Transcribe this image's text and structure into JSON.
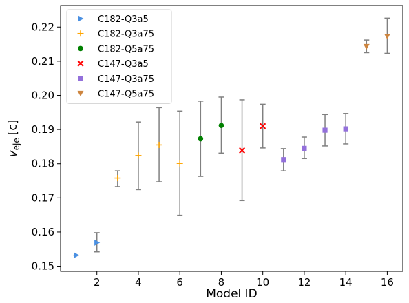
{
  "chart_data": {
    "type": "scatter",
    "xlabel": "Model ID",
    "ylabel_main": "v",
    "ylabel_sub": "eje",
    "ylabel_unit": "[c]",
    "xlim": [
      0.25,
      16.75
    ],
    "ylim": [
      0.1485,
      0.2263
    ],
    "xticks": [
      2,
      4,
      6,
      8,
      10,
      12,
      14,
      16
    ],
    "yticks": [
      0.15,
      0.16,
      0.17,
      0.18,
      0.19,
      0.2,
      0.21,
      0.22
    ],
    "ytick_labels": [
      "0.15",
      "0.16",
      "0.17",
      "0.18",
      "0.19",
      "0.20",
      "0.21",
      "0.22"
    ],
    "grid": false,
    "legend_position": "top-left",
    "series": [
      {
        "name": "C182-Q3a5",
        "marker": "triangle-right",
        "color": "#4a90e2",
        "points": [
          {
            "x": 1,
            "y": 0.1532,
            "err_low": 0.1532,
            "err_high": 0.1532
          },
          {
            "x": 2,
            "y": 0.1569,
            "err_low": 0.1542,
            "err_high": 0.1598
          }
        ]
      },
      {
        "name": "C182-Q3a75",
        "marker": "plus",
        "color": "#ffa500",
        "points": [
          {
            "x": 3,
            "y": 0.1758,
            "err_low": 0.1733,
            "err_high": 0.1779
          },
          {
            "x": 4,
            "y": 0.1824,
            "err_low": 0.1724,
            "err_high": 0.1922
          },
          {
            "x": 5,
            "y": 0.1855,
            "err_low": 0.1747,
            "err_high": 0.1964
          },
          {
            "x": 6,
            "y": 0.1801,
            "err_low": 0.1649,
            "err_high": 0.1954
          }
        ]
      },
      {
        "name": "C182-Q5a75",
        "marker": "circle",
        "color": "#008000",
        "points": [
          {
            "x": 7,
            "y": 0.1873,
            "err_low": 0.1763,
            "err_high": 0.1983
          },
          {
            "x": 8,
            "y": 0.1912,
            "err_low": 0.1831,
            "err_high": 0.1995
          }
        ]
      },
      {
        "name": "C147-Q3a5",
        "marker": "x",
        "color": "#ff0000",
        "points": [
          {
            "x": 9,
            "y": 0.1839,
            "err_low": 0.1692,
            "err_high": 0.1987
          },
          {
            "x": 10,
            "y": 0.191,
            "err_low": 0.1846,
            "err_high": 0.1974
          }
        ]
      },
      {
        "name": "C147-Q3a75",
        "marker": "square",
        "color": "#9370db",
        "points": [
          {
            "x": 11,
            "y": 0.1812,
            "err_low": 0.1779,
            "err_high": 0.1844
          },
          {
            "x": 12,
            "y": 0.1845,
            "err_low": 0.1815,
            "err_high": 0.1878
          },
          {
            "x": 13,
            "y": 0.1898,
            "err_low": 0.1852,
            "err_high": 0.1944
          },
          {
            "x": 14,
            "y": 0.1902,
            "err_low": 0.1858,
            "err_high": 0.1947
          }
        ]
      },
      {
        "name": "C147-Q5a75",
        "marker": "triangle-down",
        "color": "#cd853f",
        "points": [
          {
            "x": 15,
            "y": 0.2143,
            "err_low": 0.2125,
            "err_high": 0.2162
          },
          {
            "x": 16,
            "y": 0.2173,
            "err_low": 0.2123,
            "err_high": 0.2226
          }
        ]
      }
    ],
    "errorbar_color": "#808080"
  }
}
